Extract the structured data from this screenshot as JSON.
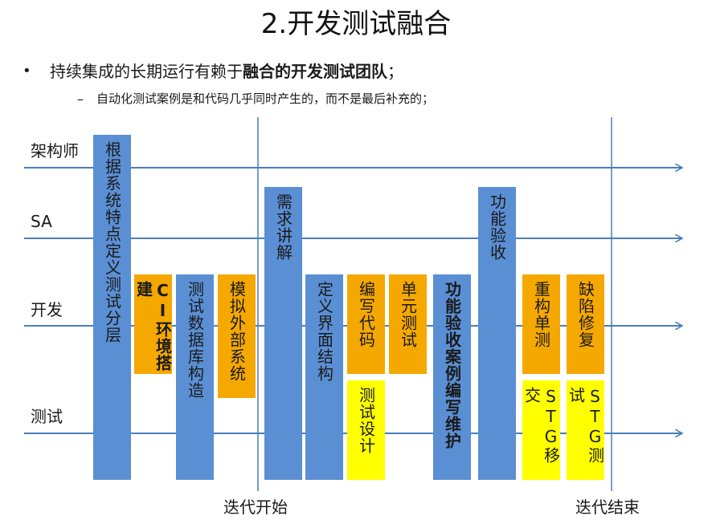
{
  "title": "2.开发测试融合",
  "bullet": {
    "marker": "•",
    "text_plain": "持续集成的长期运行有赖于",
    "text_bold": "融合的开发测试团队",
    "text_end": "；"
  },
  "sub_bullet": {
    "marker": "–",
    "text": "自动化测试案例是和代码几乎同时产生的，而不是最后补充的；"
  },
  "lanes": [
    {
      "label": "架构师"
    },
    {
      "label": "SA"
    },
    {
      "label": "开发"
    },
    {
      "label": "测试"
    }
  ],
  "milestones": [
    {
      "label": "迭代开始"
    },
    {
      "label": "迭代结束"
    }
  ],
  "boxes": [
    {
      "text": "根据系统特点定义测试分层",
      "color": "blue",
      "bold": false
    },
    {
      "text": "CI环境搭建",
      "color": "orange",
      "bold": true
    },
    {
      "text": "测试数据库构造",
      "color": "blue",
      "bold": false
    },
    {
      "text": "模拟外部系统",
      "color": "orange",
      "bold": false
    },
    {
      "text": "需求讲解",
      "color": "blue",
      "bold": false
    },
    {
      "text": "定义界面结构",
      "color": "blue",
      "bold": false
    },
    {
      "text": "编写代码",
      "color": "orange",
      "bold": false
    },
    {
      "text": "单元测试",
      "color": "orange",
      "bold": false
    },
    {
      "text": "测试设计",
      "color": "yellow",
      "bold": false
    },
    {
      "text": "功能验收案例编写维护",
      "color": "blue",
      "bold": true
    },
    {
      "text": "功能验收",
      "color": "blue",
      "bold": false
    },
    {
      "text": "重构单测",
      "color": "orange",
      "bold": false
    },
    {
      "text": "缺陷修复",
      "color": "orange",
      "bold": false
    },
    {
      "text": "STG移交",
      "color": "yellow",
      "bold": false
    },
    {
      "text": "STG测试",
      "color": "yellow",
      "bold": false
    }
  ],
  "colors": {
    "arrow": "#4a7ebb",
    "blue": "#5b8fd4",
    "orange": "#f5a800",
    "yellow": "#ffff00"
  }
}
